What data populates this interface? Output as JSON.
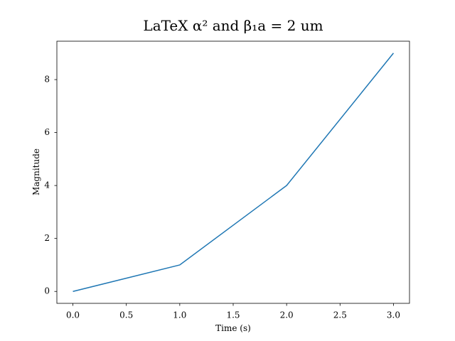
{
  "chart_data": {
    "type": "line",
    "title": "LaTeX α² and β₁a = 2 um",
    "x_label": "Time (s)",
    "y_label": "Magnitude",
    "x": [
      0,
      1,
      2,
      3
    ],
    "series": [
      {
        "color": "#1f77b4",
        "values": [
          0,
          1,
          4,
          9
        ]
      }
    ],
    "xlim": [
      -0.15,
      3.15
    ],
    "ylim": [
      -0.45,
      9.45
    ],
    "xticks": [
      {
        "value": 0,
        "label": "0.0"
      },
      {
        "value": 0.5,
        "label": "0.5"
      },
      {
        "value": 1,
        "label": "1.0"
      },
      {
        "value": 1.5,
        "label": "1.5"
      },
      {
        "value": 2,
        "label": "2.0"
      },
      {
        "value": 2.5,
        "label": "2.5"
      },
      {
        "value": 3,
        "label": "3.0"
      }
    ],
    "yticks": [
      0,
      2,
      4,
      6,
      8
    ],
    "grid": false
  }
}
